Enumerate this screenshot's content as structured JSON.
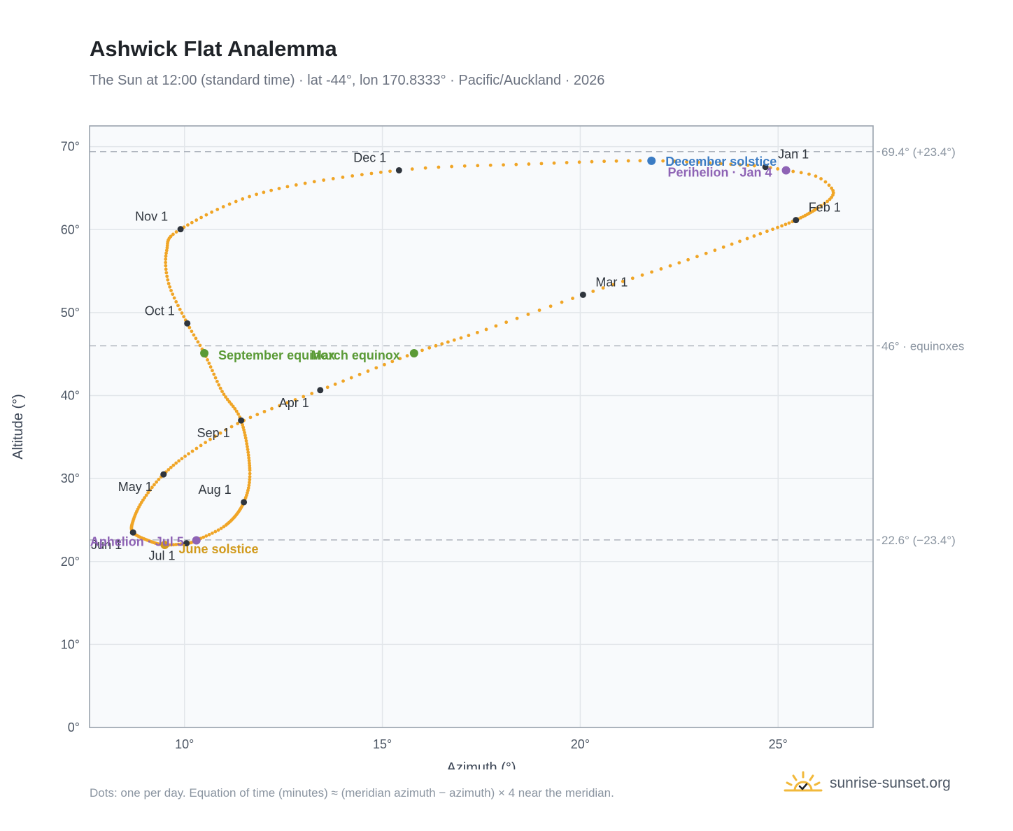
{
  "header": {
    "title": "Ashwick Flat Analemma",
    "subtitle": "The Sun at 12:00 (standard time) · lat -44°, lon 170.8333° · Pacific/Auckland · 2026"
  },
  "footer": {
    "note": "Dots: one per day. Equation of time (minutes) ≈ (meridian azimuth − azimuth) × 4 near the meridian.",
    "brand": "sunrise-sunset.org",
    "brand_icon": "sun-logo-icon"
  },
  "chart_data": {
    "type": "scatter",
    "xlabel": "Azimuth (°)",
    "ylabel": "Altitude (°)",
    "xlim": [
      7.6,
      27.4
    ],
    "ylim": [
      0,
      72.5
    ],
    "x_ticks": [
      10,
      15,
      20,
      25
    ],
    "x_tick_labels": [
      "10°",
      "15°",
      "20°",
      "25°"
    ],
    "y_ticks": [
      0,
      10,
      20,
      30,
      40,
      50,
      60,
      70
    ],
    "y_tick_labels": [
      "0°",
      "10°",
      "20°",
      "30°",
      "40°",
      "50°",
      "60°",
      "70°"
    ],
    "grid": true,
    "reference_lines": [
      {
        "y": 69.4,
        "label": "69.4° (+23.4°)"
      },
      {
        "y": 46.0,
        "label": "46° · equinoxes"
      },
      {
        "y": 22.6,
        "label": "22.6° (−23.4°)"
      }
    ],
    "series": [
      {
        "color": "#f0a526",
        "anchors": [
          {
            "doy": 1,
            "x": 24.68,
            "y": 67.55
          },
          {
            "doy": 4,
            "x": 25.2,
            "y": 67.15
          },
          {
            "doy": 8,
            "x": 25.95,
            "y": 66.45
          },
          {
            "doy": 12,
            "x": 26.35,
            "y": 65.0
          },
          {
            "doy": 16,
            "x": 26.35,
            "y": 63.9
          },
          {
            "doy": 21,
            "x": 26.0,
            "y": 62.6
          },
          {
            "doy": 32,
            "x": 25.45,
            "y": 61.15
          },
          {
            "doy": 40,
            "x": 24.55,
            "y": 59.5
          },
          {
            "doy": 50,
            "x": 22.5,
            "y": 56.0
          },
          {
            "doy": 60,
            "x": 20.07,
            "y": 52.15
          },
          {
            "doy": 70,
            "x": 17.4,
            "y": 47.6
          },
          {
            "doy": 79,
            "x": 15.8,
            "y": 45.1
          },
          {
            "doy": 91,
            "x": 13.43,
            "y": 40.65
          },
          {
            "doy": 101,
            "x": 11.5,
            "y": 37.0
          },
          {
            "doy": 111,
            "x": 10.2,
            "y": 33.3
          },
          {
            "doy": 121,
            "x": 9.47,
            "y": 30.5
          },
          {
            "doy": 131,
            "x": 8.95,
            "y": 27.4
          },
          {
            "doy": 141,
            "x": 8.7,
            "y": 24.9
          },
          {
            "doy": 152,
            "x": 8.7,
            "y": 23.5
          },
          {
            "doy": 162,
            "x": 9.1,
            "y": 22.5
          },
          {
            "doy": 172,
            "x": 9.5,
            "y": 22.0
          },
          {
            "doy": 182,
            "x": 10.05,
            "y": 22.2
          },
          {
            "doy": 186,
            "x": 10.3,
            "y": 22.55
          },
          {
            "doy": 197,
            "x": 11.05,
            "y": 24.4
          },
          {
            "doy": 213,
            "x": 11.5,
            "y": 27.15
          },
          {
            "doy": 225,
            "x": 11.65,
            "y": 31.0
          },
          {
            "doy": 244,
            "x": 11.43,
            "y": 37.0
          },
          {
            "doy": 255,
            "x": 10.95,
            "y": 40.5
          },
          {
            "doy": 266,
            "x": 10.5,
            "y": 45.1
          },
          {
            "doy": 274,
            "x": 10.07,
            "y": 48.7
          },
          {
            "doy": 285,
            "x": 9.6,
            "y": 53.5
          },
          {
            "doy": 295,
            "x": 9.55,
            "y": 57.5
          },
          {
            "doy": 305,
            "x": 9.9,
            "y": 60.05
          },
          {
            "doy": 320,
            "x": 12.0,
            "y": 64.5
          },
          {
            "doy": 335,
            "x": 15.42,
            "y": 67.15
          },
          {
            "doy": 345,
            "x": 18.7,
            "y": 67.9
          },
          {
            "doy": 355,
            "x": 21.8,
            "y": 68.3
          },
          {
            "doy": 365,
            "x": 24.4,
            "y": 67.7
          },
          {
            "doy": 366,
            "x": 24.68,
            "y": 67.55
          }
        ]
      }
    ],
    "month_markers": [
      {
        "label": "Jan 1",
        "x": 24.68,
        "y": 67.55,
        "pos": "above-right"
      },
      {
        "label": "Feb 1",
        "x": 25.45,
        "y": 61.15,
        "pos": "above-right"
      },
      {
        "label": "Mar 1",
        "x": 20.07,
        "y": 52.15,
        "pos": "above-right"
      },
      {
        "label": "Apr 1",
        "x": 13.43,
        "y": 40.65,
        "pos": "below-left"
      },
      {
        "label": "May 1",
        "x": 9.47,
        "y": 30.5,
        "pos": "below-left"
      },
      {
        "label": "Jun 1",
        "x": 8.7,
        "y": 23.5,
        "pos": "below-left"
      },
      {
        "label": "Jul 1",
        "x": 10.05,
        "y": 22.2,
        "pos": "below-left"
      },
      {
        "label": "Aug 1",
        "x": 11.5,
        "y": 27.15,
        "pos": "above-left"
      },
      {
        "label": "Sep 1",
        "x": 11.43,
        "y": 37.0,
        "pos": "below-left"
      },
      {
        "label": "Oct 1",
        "x": 10.07,
        "y": 48.7,
        "pos": "above-left"
      },
      {
        "label": "Nov 1",
        "x": 9.9,
        "y": 60.05,
        "pos": "above-left"
      },
      {
        "label": "Dec 1",
        "x": 15.42,
        "y": 67.15,
        "pos": "above-left"
      }
    ],
    "events": [
      {
        "label": "December solstice",
        "x": 21.8,
        "y": 68.3,
        "color": "#3b7cc4"
      },
      {
        "label": "Perihelion · Jan 4",
        "x": 25.2,
        "y": 67.15,
        "color": "#8e63b5"
      },
      {
        "label": "March equinox",
        "x": 15.8,
        "y": 45.1,
        "color": "#5a9a36"
      },
      {
        "label": "September equinox",
        "x": 10.5,
        "y": 45.1,
        "color": "#5a9a36"
      },
      {
        "label": "June solstice",
        "x": 9.5,
        "y": 22.0,
        "color": "#d19a1c"
      },
      {
        "label": "Aphelion · Jul 5",
        "x": 10.3,
        "y": 22.55,
        "color": "#8e63b5"
      }
    ]
  }
}
